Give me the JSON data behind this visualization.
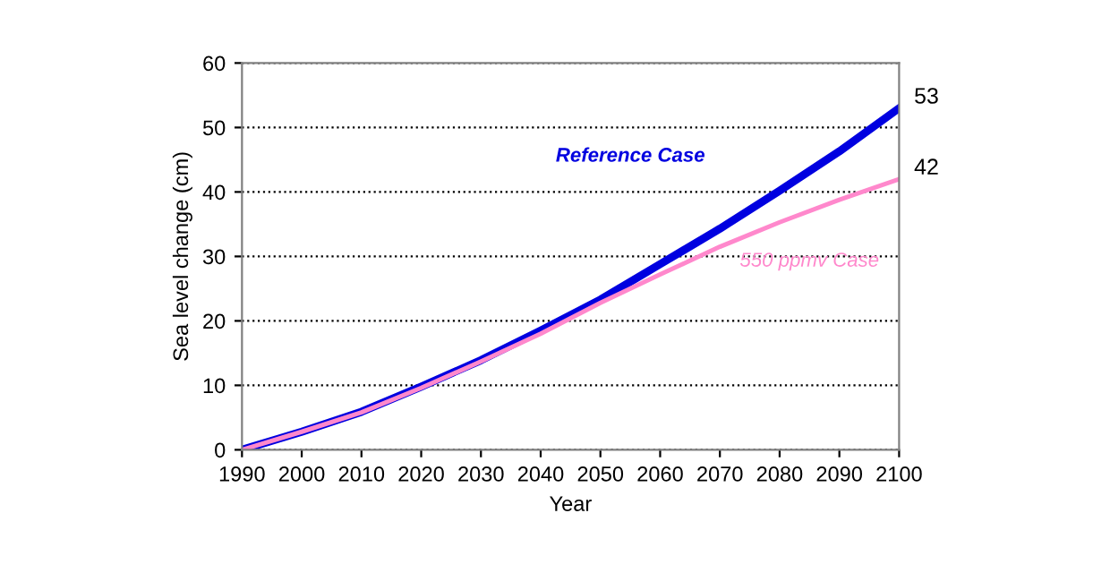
{
  "chart_data": {
    "type": "line",
    "xlabel": "Year",
    "ylabel": "Sea level change (cm)",
    "x": [
      1990,
      2000,
      2010,
      2020,
      2030,
      2040,
      2050,
      2060,
      2070,
      2080,
      2090,
      2100
    ],
    "series": [
      {
        "name": "Reference Case",
        "color": "#0000e0",
        "values": [
          0,
          2.8,
          5.9,
          9.8,
          13.9,
          18.5,
          23.3,
          28.8,
          34.3,
          40.2,
          46.3,
          53
        ],
        "value_labels": [
          null,
          null,
          null,
          null,
          null,
          null,
          null,
          null,
          null,
          null,
          null,
          "53"
        ]
      },
      {
        "name": "550 ppmv Case",
        "color": "#ff88cc",
        "values": [
          0,
          2.8,
          5.8,
          9.6,
          13.7,
          18.0,
          22.8,
          27.2,
          31.5,
          35.3,
          38.8,
          42
        ],
        "value_labels": [
          null,
          null,
          null,
          null,
          null,
          null,
          null,
          null,
          null,
          null,
          null,
          "42"
        ]
      }
    ],
    "xlim": [
      1990,
      2100
    ],
    "xticks": [
      1990,
      2000,
      2010,
      2020,
      2030,
      2040,
      2050,
      2060,
      2070,
      2080,
      2090,
      2100
    ],
    "ylim": [
      0,
      60
    ],
    "yticks": [
      0,
      10,
      20,
      30,
      40,
      50,
      60
    ],
    "grid": "y",
    "legend": false,
    "marker": "none",
    "line_style": "solid"
  }
}
